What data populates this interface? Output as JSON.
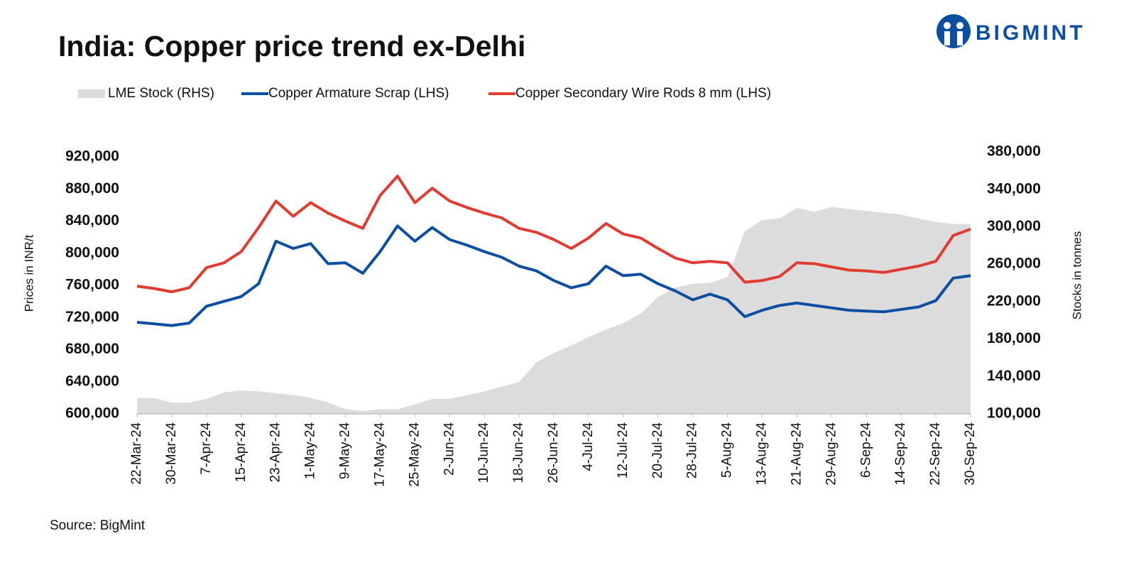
{
  "title": "India: Copper price trend ex-Delhi",
  "logo": "BIGMINT",
  "source": "Source: BigMint",
  "chart_data": {
    "type": "line",
    "ylabel": "Prices in INR/t",
    "y2label": "Stocks in tonnes",
    "x": [
      "2024-03-22",
      "2024-03-26",
      "2024-03-30",
      "2024-04-03",
      "2024-04-07",
      "2024-04-11",
      "2024-04-15",
      "2024-04-19",
      "2024-04-23",
      "2024-04-27",
      "2024-05-01",
      "2024-05-05",
      "2024-05-09",
      "2024-05-13",
      "2024-05-17",
      "2024-05-21",
      "2024-05-25",
      "2024-05-29",
      "2024-06-02",
      "2024-06-06",
      "2024-06-10",
      "2024-06-14",
      "2024-06-18",
      "2024-06-22",
      "2024-06-26",
      "2024-06-30",
      "2024-07-04",
      "2024-07-08",
      "2024-07-12",
      "2024-07-16",
      "2024-07-20",
      "2024-07-24",
      "2024-07-28",
      "2024-08-01",
      "2024-08-05",
      "2024-08-09",
      "2024-08-13",
      "2024-08-17",
      "2024-08-21",
      "2024-08-25",
      "2024-08-29",
      "2024-09-02",
      "2024-09-06",
      "2024-09-10",
      "2024-09-14",
      "2024-09-18",
      "2024-09-22",
      "2024-09-26",
      "2024-09-30"
    ],
    "xlim": [
      "2024-03-22",
      "2024-09-30"
    ],
    "xticks": [
      {
        "value": "2024-03-22",
        "label": "22-Mar-24"
      },
      {
        "value": "2024-03-30",
        "label": "30-Mar-24"
      },
      {
        "value": "2024-04-07",
        "label": "7-Apr-24"
      },
      {
        "value": "2024-04-15",
        "label": "15-Apr-24"
      },
      {
        "value": "2024-04-23",
        "label": "23-Apr-24"
      },
      {
        "value": "2024-05-01",
        "label": "1-May-24"
      },
      {
        "value": "2024-05-09",
        "label": "9-May-24"
      },
      {
        "value": "2024-05-17",
        "label": "17-May-24"
      },
      {
        "value": "2024-05-25",
        "label": "25-May-24"
      },
      {
        "value": "2024-06-02",
        "label": "2-Jun-24"
      },
      {
        "value": "2024-06-10",
        "label": "10-Jun-24"
      },
      {
        "value": "2024-06-18",
        "label": "18-Jun-24"
      },
      {
        "value": "2024-06-26",
        "label": "26-Jun-24"
      },
      {
        "value": "2024-07-04",
        "label": "4-Jul-24"
      },
      {
        "value": "2024-07-12",
        "label": "12-Jul-24"
      },
      {
        "value": "2024-07-20",
        "label": "20-Jul-24"
      },
      {
        "value": "2024-07-28",
        "label": "28-Jul-24"
      },
      {
        "value": "2024-08-05",
        "label": "5-Aug-24"
      },
      {
        "value": "2024-08-13",
        "label": "13-Aug-24"
      },
      {
        "value": "2024-08-21",
        "label": "21-Aug-24"
      },
      {
        "value": "2024-08-29",
        "label": "29-Aug-24"
      },
      {
        "value": "2024-09-06",
        "label": "6-Sep-24"
      },
      {
        "value": "2024-09-14",
        "label": "14-Sep-24"
      },
      {
        "value": "2024-09-22",
        "label": "22-Sep-24"
      },
      {
        "value": "2024-09-30",
        "label": "30-Sep-24"
      }
    ],
    "ylim": [
      600000,
      920000
    ],
    "yticks": [
      {
        "value": 600000,
        "label": "600,000"
      },
      {
        "value": 640000,
        "label": "640,000"
      },
      {
        "value": 680000,
        "label": "680,000"
      },
      {
        "value": 720000,
        "label": "720,000"
      },
      {
        "value": 760000,
        "label": "760,000"
      },
      {
        "value": 800000,
        "label": "800,000"
      },
      {
        "value": 840000,
        "label": "840,000"
      },
      {
        "value": 880000,
        "label": "880,000"
      },
      {
        "value": 920000,
        "label": "920,000"
      }
    ],
    "y2lim": [
      100000,
      380000
    ],
    "y2ticks": [
      {
        "value": 100000,
        "label": "100,000"
      },
      {
        "value": 140000,
        "label": "140,000"
      },
      {
        "value": 180000,
        "label": "180,000"
      },
      {
        "value": 220000,
        "label": "220,000"
      },
      {
        "value": 260000,
        "label": "260,000"
      },
      {
        "value": 300000,
        "label": "300,000"
      },
      {
        "value": 340000,
        "label": "340,000"
      },
      {
        "value": 380000,
        "label": "380,000"
      }
    ],
    "series": [
      {
        "name": "LME Stock (RHS)",
        "type": "area",
        "axis": "y2",
        "color": "#dcdcdc",
        "values": [
          117000,
          117000,
          112000,
          112000,
          116000,
          123000,
          125000,
          124000,
          122000,
          120000,
          117000,
          112000,
          105000,
          103000,
          105000,
          105000,
          110000,
          116000,
          116000,
          120000,
          124000,
          129000,
          134000,
          155000,
          165000,
          173000,
          182000,
          190000,
          197000,
          207000,
          225000,
          235000,
          239000,
          240000,
          246000,
          295000,
          307000,
          309000,
          320000,
          316000,
          321000,
          319000,
          317000,
          315000,
          313000,
          309000,
          305000,
          303000,
          303000
        ]
      },
      {
        "name": "Copper Armature Scrap (LHS)",
        "type": "line",
        "color": "#0b4ea2",
        "values": [
          714000,
          712000,
          710000,
          713000,
          734000,
          740000,
          746000,
          762000,
          815000,
          806000,
          812000,
          787000,
          788000,
          775000,
          802000,
          834000,
          815000,
          832000,
          817000,
          810000,
          802000,
          795000,
          784000,
          778000,
          766000,
          757000,
          762000,
          784000,
          772000,
          774000,
          762000,
          753000,
          742000,
          749000,
          742000,
          721000,
          729000,
          735000,
          738000,
          735000,
          732000,
          729000,
          728000,
          727000,
          730000,
          733000,
          741000,
          769000,
          772000
        ]
      },
      {
        "name": "Copper Secondary Wire Rods 8 mm (LHS)",
        "type": "line",
        "color": "#e03c31",
        "values": [
          759000,
          756000,
          752000,
          757000,
          782000,
          788000,
          802000,
          832000,
          865000,
          846000,
          863000,
          850000,
          840000,
          831000,
          872000,
          896000,
          863000,
          881000,
          865000,
          857000,
          850000,
          844000,
          831000,
          826000,
          817000,
          806000,
          819000,
          837000,
          824000,
          819000,
          806000,
          794000,
          788000,
          790000,
          788000,
          764000,
          766000,
          771000,
          788000,
          787000,
          783000,
          779000,
          778000,
          776000,
          780000,
          784000,
          790000,
          822000,
          830000
        ]
      }
    ]
  }
}
